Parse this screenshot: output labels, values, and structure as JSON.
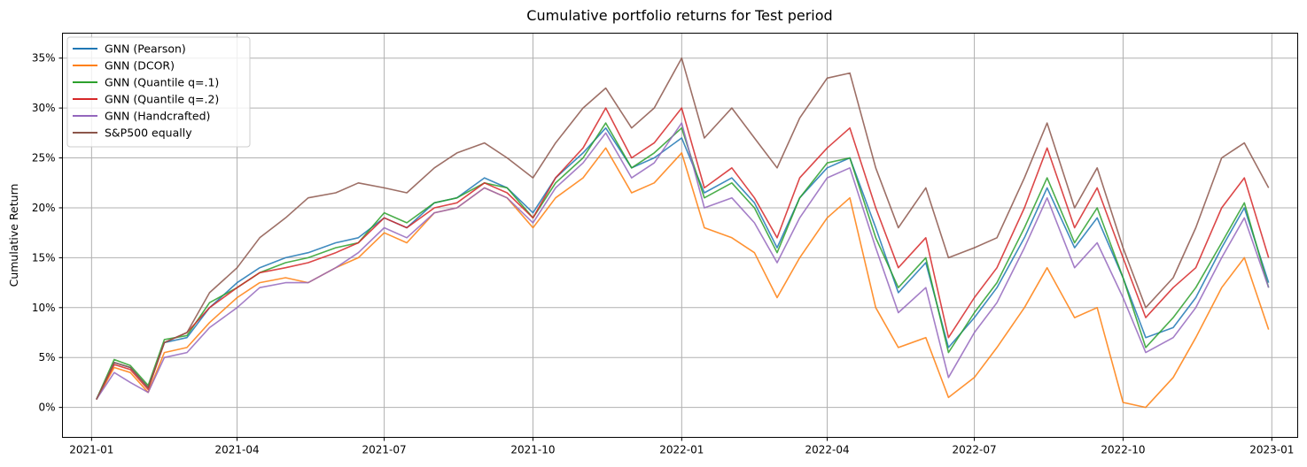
{
  "chart_data": {
    "type": "line",
    "title": "Cumulative portfolio returns for Test period",
    "xlabel": "",
    "ylabel": "Cumulative Return",
    "y_format": "percent",
    "xlim": [
      "2020-12-14",
      "2023-01-17"
    ],
    "ylim": [
      -3,
      37.5
    ],
    "grid": true,
    "legend_position": "upper left",
    "x_ticks": [
      "2021-01",
      "2021-04",
      "2021-07",
      "2021-10",
      "2022-01",
      "2022-04",
      "2022-07",
      "2022-10",
      "2023-01"
    ],
    "y_ticks": [
      0,
      5,
      10,
      15,
      20,
      25,
      30,
      35
    ],
    "y_tick_labels": [
      "0%",
      "5%",
      "10%",
      "15%",
      "20%",
      "25%",
      "30%",
      "35%"
    ],
    "x": [
      "2021-01-04",
      "2021-01-15",
      "2021-01-25",
      "2021-02-05",
      "2021-02-15",
      "2021-03-01",
      "2021-03-15",
      "2021-04-01",
      "2021-04-15",
      "2021-05-01",
      "2021-05-15",
      "2021-06-01",
      "2021-06-15",
      "2021-07-01",
      "2021-07-15",
      "2021-08-01",
      "2021-08-15",
      "2021-09-01",
      "2021-09-15",
      "2021-10-01",
      "2021-10-15",
      "2021-11-01",
      "2021-11-15",
      "2021-12-01",
      "2021-12-15",
      "2022-01-01",
      "2022-01-15",
      "2022-02-01",
      "2022-02-15",
      "2022-03-01",
      "2022-03-15",
      "2022-04-01",
      "2022-04-15",
      "2022-05-01",
      "2022-05-15",
      "2022-06-01",
      "2022-06-15",
      "2022-07-01",
      "2022-07-15",
      "2022-08-01",
      "2022-08-15",
      "2022-09-01",
      "2022-09-15",
      "2022-10-01",
      "2022-10-15",
      "2022-11-01",
      "2022-11-15",
      "2022-12-01",
      "2022-12-15",
      "2022-12-30"
    ],
    "series": [
      {
        "name": "GNN (Pearson)",
        "color": "#1f77b4",
        "values": [
          0.8,
          4.5,
          4.0,
          2.0,
          6.5,
          7.0,
          10.0,
          12.5,
          14.0,
          15.0,
          15.5,
          16.5,
          17.0,
          19.0,
          18.0,
          20.5,
          21.0,
          23.0,
          22.0,
          19.5,
          23.0,
          25.5,
          28.0,
          24.0,
          25.0,
          27.0,
          21.5,
          23.0,
          20.5,
          16.0,
          21.0,
          24.0,
          25.0,
          18.0,
          11.5,
          14.5,
          6.0,
          9.0,
          12.0,
          17.0,
          22.0,
          16.0,
          19.0,
          13.0,
          7.0,
          8.0,
          11.0,
          16.0,
          20.0,
          12.5
        ]
      },
      {
        "name": "GNN (DCOR)",
        "color": "#ff7f0e",
        "values": [
          0.8,
          4.0,
          3.5,
          1.5,
          5.5,
          6.0,
          8.5,
          11.0,
          12.5,
          13.0,
          12.5,
          14.0,
          15.0,
          17.5,
          16.5,
          19.5,
          20.0,
          22.0,
          21.0,
          18.0,
          21.0,
          23.0,
          26.0,
          21.5,
          22.5,
          25.5,
          18.0,
          17.0,
          15.5,
          11.0,
          15.0,
          19.0,
          21.0,
          10.0,
          6.0,
          7.0,
          1.0,
          3.0,
          6.0,
          10.0,
          14.0,
          9.0,
          10.0,
          0.5,
          0.0,
          3.0,
          7.0,
          12.0,
          15.0,
          7.8
        ]
      },
      {
        "name": "GNN (Quantile q=.1)",
        "color": "#2ca02c",
        "values": [
          0.8,
          4.8,
          4.2,
          2.2,
          6.8,
          7.2,
          10.5,
          12.0,
          13.5,
          14.5,
          15.0,
          16.0,
          16.5,
          19.5,
          18.5,
          20.5,
          21.0,
          22.5,
          22.0,
          19.0,
          22.5,
          25.0,
          28.5,
          24.0,
          25.5,
          28.0,
          21.0,
          22.5,
          20.0,
          15.5,
          21.0,
          24.5,
          25.0,
          17.0,
          12.0,
          15.0,
          5.5,
          9.5,
          12.5,
          18.0,
          23.0,
          16.5,
          20.0,
          13.0,
          6.0,
          9.0,
          12.0,
          16.5,
          20.5,
          12.0
        ]
      },
      {
        "name": "GNN (Quantile q=.2)",
        "color": "#d62728",
        "values": [
          0.8,
          4.3,
          3.8,
          1.8,
          6.5,
          7.5,
          10.0,
          12.0,
          13.5,
          14.0,
          14.5,
          15.5,
          16.5,
          19.0,
          18.0,
          20.0,
          20.5,
          22.5,
          21.5,
          19.0,
          23.0,
          26.0,
          30.0,
          25.0,
          26.5,
          30.0,
          22.0,
          24.0,
          21.0,
          17.0,
          23.0,
          26.0,
          28.0,
          20.0,
          14.0,
          17.0,
          7.0,
          11.0,
          14.0,
          20.0,
          26.0,
          18.0,
          22.0,
          15.0,
          9.0,
          12.0,
          14.0,
          20.0,
          23.0,
          15.0
        ]
      },
      {
        "name": "GNN (Handcrafted)",
        "color": "#9467bd",
        "values": [
          0.8,
          3.5,
          2.5,
          1.5,
          5.0,
          5.5,
          8.0,
          10.0,
          12.0,
          12.5,
          12.5,
          14.0,
          15.5,
          18.0,
          17.0,
          19.5,
          20.0,
          22.0,
          21.0,
          18.5,
          22.0,
          24.5,
          27.5,
          23.0,
          24.5,
          28.5,
          20.0,
          21.0,
          18.5,
          14.5,
          19.0,
          23.0,
          24.0,
          16.0,
          9.5,
          12.0,
          3.0,
          7.5,
          10.5,
          16.0,
          21.0,
          14.0,
          16.5,
          11.0,
          5.5,
          7.0,
          10.0,
          15.0,
          19.0,
          12.0
        ]
      },
      {
        "name": "S&P500 equally",
        "color": "#8c564b",
        "values": [
          0.8,
          4.5,
          4.0,
          2.0,
          6.5,
          7.5,
          11.5,
          14.0,
          17.0,
          19.0,
          21.0,
          21.5,
          22.5,
          22.0,
          21.5,
          24.0,
          25.5,
          26.5,
          25.0,
          23.0,
          26.5,
          30.0,
          32.0,
          28.0,
          30.0,
          35.0,
          27.0,
          30.0,
          27.0,
          24.0,
          29.0,
          33.0,
          33.5,
          24.0,
          18.0,
          22.0,
          15.0,
          16.0,
          17.0,
          23.0,
          28.5,
          20.0,
          24.0,
          16.0,
          10.0,
          13.0,
          18.0,
          25.0,
          26.5,
          22.0
        ]
      }
    ]
  }
}
